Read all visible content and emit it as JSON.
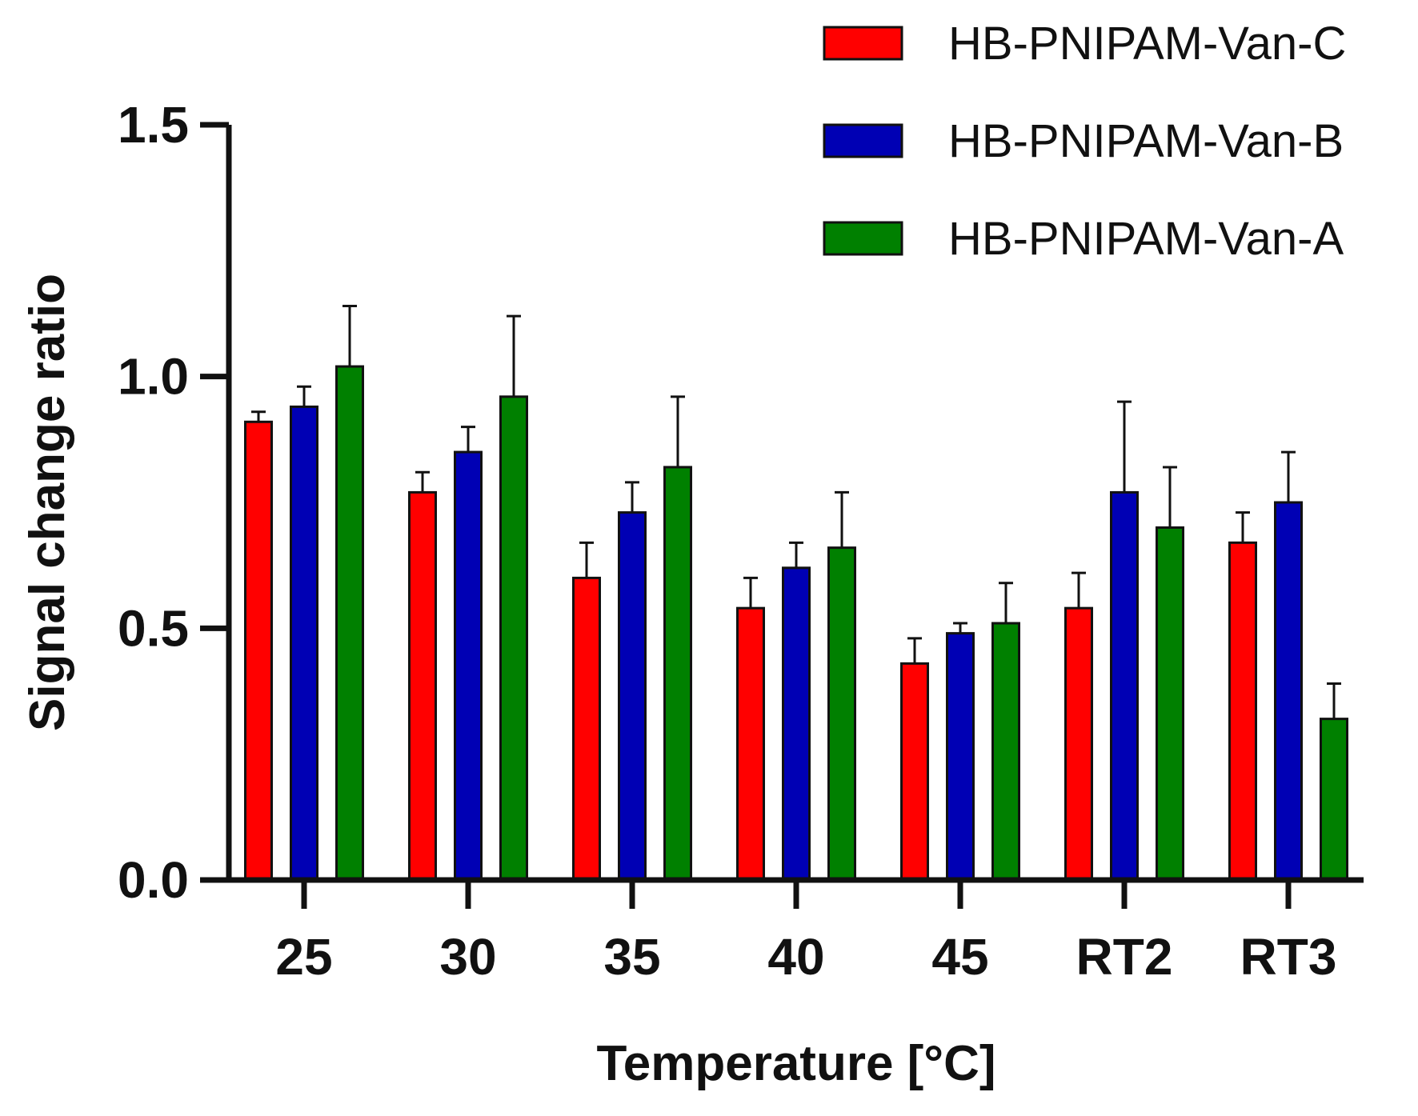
{
  "chart_data": {
    "type": "bar",
    "categories": [
      "25",
      "30",
      "35",
      "40",
      "45",
      "RT2",
      "RT3"
    ],
    "series": [
      {
        "name": "HB-PNIPAM-Van-C",
        "color": "#ff0000",
        "values": [
          0.91,
          0.77,
          0.6,
          0.54,
          0.43,
          0.54,
          0.67
        ],
        "errors": [
          0.02,
          0.04,
          0.07,
          0.06,
          0.05,
          0.07,
          0.06
        ]
      },
      {
        "name": "HB-PNIPAM-Van-B",
        "color": "#0000b4",
        "values": [
          0.94,
          0.85,
          0.73,
          0.62,
          0.49,
          0.77,
          0.75
        ],
        "errors": [
          0.04,
          0.05,
          0.06,
          0.05,
          0.02,
          0.18,
          0.1
        ]
      },
      {
        "name": "HB-PNIPAM-Van-A",
        "color": "#008000",
        "values": [
          1.02,
          0.96,
          0.82,
          0.66,
          0.51,
          0.7,
          0.32
        ],
        "errors": [
          0.12,
          0.16,
          0.14,
          0.11,
          0.08,
          0.12,
          0.07
        ]
      }
    ],
    "yticks": [
      "0.0",
      "0.5",
      "1.0",
      "1.5"
    ],
    "ylim": [
      0,
      1.5
    ],
    "xlabel": "Temperature [°C]",
    "ylabel": "Signal change ratio",
    "legend_position": "top-right",
    "grid": false
  }
}
